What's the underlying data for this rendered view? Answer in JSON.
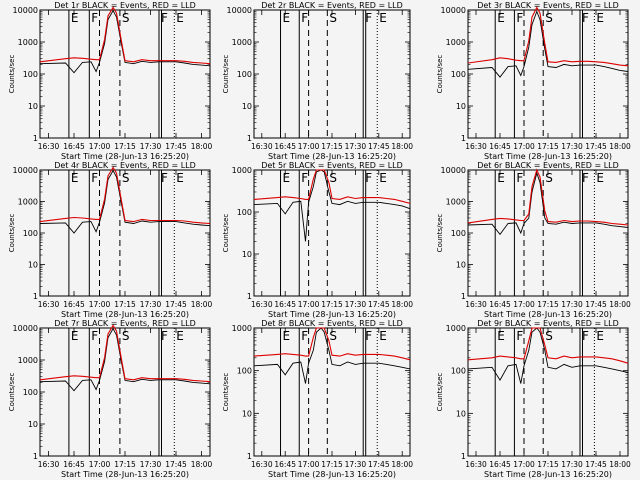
{
  "colors": {
    "events": "#000000",
    "lld": "#dd0000",
    "background": "#f4f4f4"
  },
  "chart_data": [
    {
      "title": "Det 1r BLACK = Events, RED = LLD",
      "type": "line",
      "xlabel": "Start Time (28-Jun-13 16:25:20)",
      "ylabel": "Counts/sec",
      "yscale": "log",
      "ylim": [
        1,
        10000
      ],
      "x": [
        "16:25",
        "16:40",
        "16:45",
        "16:50",
        "16:55",
        "16:58",
        "17:00",
        "17:03",
        "17:05",
        "17:08",
        "17:10",
        "17:13",
        "17:15",
        "17:20",
        "17:25",
        "17:30",
        "17:35",
        "17:40",
        "17:45",
        "17:50",
        "17:55",
        "18:00",
        "18:05"
      ],
      "series": [
        {
          "name": "BLACK = Events",
          "values": [
            210,
            220,
            110,
            230,
            240,
            120,
            230,
            900,
            5000,
            9500,
            6000,
            800,
            230,
            210,
            250,
            230,
            240,
            240,
            240,
            220,
            200,
            190,
            180
          ]
        },
        {
          "name": "RED = LLD",
          "values": [
            240,
            300,
            320,
            310,
            290,
            280,
            280,
            1200,
            6500,
            12000,
            8000,
            1000,
            260,
            240,
            280,
            260,
            260,
            260,
            260,
            250,
            230,
            220,
            210
          ]
        }
      ]
    },
    {
      "title": "Det 2r BLACK = Events, RED = LLD",
      "type": "line",
      "xlabel": "Start Time (28-Jun-13 16:25:20)",
      "ylabel": "Counts/sec",
      "yscale": "log",
      "ylim": [
        1,
        10000
      ],
      "x": [],
      "series": []
    },
    {
      "title": "Det 3r BLACK = Events, RED = LLD",
      "type": "line",
      "xlabel": "Start Time (28-Jun-13 16:25:20)",
      "ylabel": "Counts/sec",
      "yscale": "log",
      "ylim": [
        1,
        10000
      ],
      "x": [
        "16:25",
        "16:40",
        "16:45",
        "16:50",
        "16:55",
        "16:58",
        "17:00",
        "17:03",
        "17:05",
        "17:08",
        "17:10",
        "17:13",
        "17:15",
        "17:20",
        "17:25",
        "17:30",
        "17:35",
        "17:40",
        "17:45",
        "17:50",
        "17:55",
        "18:00",
        "18:05"
      ],
      "series": [
        {
          "name": "BLACK = Events",
          "values": [
            140,
            160,
            80,
            170,
            180,
            90,
            170,
            700,
            3500,
            9000,
            5000,
            600,
            170,
            160,
            200,
            180,
            190,
            190,
            190,
            170,
            150,
            130,
            120
          ]
        },
        {
          "name": "RED = LLD",
          "values": [
            220,
            280,
            320,
            300,
            270,
            260,
            260,
            1100,
            6000,
            12000,
            8000,
            900,
            240,
            230,
            260,
            240,
            250,
            250,
            240,
            230,
            210,
            190,
            180
          ]
        }
      ]
    },
    {
      "title": "Det 4r BLACK = Events, RED = LLD",
      "type": "line",
      "xlabel": "Start Time (28-Jun-13 16:25:20)",
      "ylabel": "Counts/sec",
      "yscale": "log",
      "ylim": [
        1,
        10000
      ],
      "x": [
        "16:25",
        "16:40",
        "16:45",
        "16:50",
        "16:55",
        "16:58",
        "17:00",
        "17:03",
        "17:05",
        "17:08",
        "17:10",
        "17:13",
        "17:15",
        "17:20",
        "17:25",
        "17:30",
        "17:35",
        "17:40",
        "17:45",
        "17:50",
        "17:55",
        "18:00",
        "18:05"
      ],
      "series": [
        {
          "name": "BLACK = Events",
          "values": [
            200,
            210,
            100,
            220,
            230,
            110,
            220,
            900,
            5000,
            9500,
            6000,
            800,
            220,
            200,
            240,
            220,
            230,
            230,
            230,
            210,
            190,
            180,
            170
          ]
        },
        {
          "name": "RED = LLD",
          "values": [
            230,
            290,
            310,
            300,
            280,
            270,
            270,
            1200,
            6500,
            12000,
            8000,
            1000,
            250,
            230,
            270,
            250,
            250,
            250,
            250,
            240,
            220,
            210,
            200
          ]
        }
      ]
    },
    {
      "title": "Det 5r BLACK = Events, RED = LLD",
      "type": "line",
      "xlabel": "Start Time (28-Jun-13 16:25:20)",
      "ylabel": "Counts/sec",
      "yscale": "log",
      "ylim": [
        1,
        1000
      ],
      "x": [
        "16:25",
        "16:40",
        "16:45",
        "16:50",
        "16:55",
        "16:58",
        "17:00",
        "17:03",
        "17:05",
        "17:08",
        "17:10",
        "17:13",
        "17:15",
        "17:20",
        "17:25",
        "17:30",
        "17:35",
        "17:40",
        "17:45",
        "17:50",
        "17:55",
        "18:00",
        "18:05"
      ],
      "series": [
        {
          "name": "BLACK = Events",
          "values": [
            150,
            160,
            90,
            170,
            180,
            20,
            170,
            400,
            900,
            1000,
            900,
            300,
            160,
            150,
            180,
            160,
            170,
            170,
            170,
            160,
            150,
            140,
            120
          ]
        },
        {
          "name": "RED = LLD",
          "values": [
            200,
            220,
            230,
            220,
            210,
            200,
            200,
            600,
            1000,
            1000,
            1000,
            500,
            210,
            200,
            230,
            210,
            220,
            220,
            220,
            210,
            200,
            180,
            160
          ]
        }
      ]
    },
    {
      "title": "Det 6r BLACK = Events, RED = LLD",
      "type": "line",
      "xlabel": "Start Time (28-Jun-13 16:25:20)",
      "ylabel": "Counts/sec",
      "yscale": "log",
      "ylim": [
        1,
        10000
      ],
      "x": [
        "16:25",
        "16:40",
        "16:45",
        "16:50",
        "16:55",
        "16:58",
        "17:00",
        "17:03",
        "17:05",
        "17:08",
        "17:10",
        "17:13",
        "17:15",
        "17:20",
        "17:25",
        "17:30",
        "17:35",
        "17:40",
        "17:45",
        "17:50",
        "17:55",
        "18:00",
        "18:05"
      ],
      "series": [
        {
          "name": "BLACK = Events",
          "values": [
            180,
            190,
            90,
            200,
            210,
            100,
            200,
            300,
            2000,
            8000,
            4000,
            300,
            200,
            190,
            220,
            200,
            210,
            210,
            210,
            190,
            170,
            160,
            150
          ]
        },
        {
          "name": "RED = LLD",
          "values": [
            210,
            270,
            290,
            280,
            260,
            250,
            250,
            400,
            3000,
            10000,
            6000,
            500,
            230,
            220,
            250,
            230,
            240,
            240,
            230,
            220,
            200,
            190,
            180
          ]
        }
      ]
    },
    {
      "title": "Det 7r BLACK = Events, RED = LLD",
      "type": "line",
      "xlabel": "Start Time (28-Jun-13 16:25:20)",
      "ylabel": "Counts/sec",
      "yscale": "log",
      "ylim": [
        1,
        10000
      ],
      "x": [
        "16:25",
        "16:40",
        "16:45",
        "16:50",
        "16:55",
        "16:58",
        "17:00",
        "17:03",
        "17:05",
        "17:08",
        "17:10",
        "17:13",
        "17:15",
        "17:20",
        "17:25",
        "17:30",
        "17:35",
        "17:40",
        "17:45",
        "17:50",
        "17:55",
        "18:00",
        "18:05"
      ],
      "series": [
        {
          "name": "BLACK = Events",
          "values": [
            210,
            220,
            110,
            230,
            240,
            120,
            230,
            900,
            5000,
            9500,
            6000,
            800,
            230,
            210,
            250,
            230,
            240,
            240,
            240,
            220,
            200,
            190,
            180
          ]
        },
        {
          "name": "RED = LLD",
          "values": [
            240,
            300,
            320,
            310,
            290,
            280,
            280,
            1200,
            6500,
            12000,
            8000,
            1000,
            260,
            240,
            280,
            260,
            260,
            260,
            260,
            250,
            230,
            220,
            210
          ]
        }
      ]
    },
    {
      "title": "Det 8r BLACK = Events, RED = LLD",
      "type": "line",
      "xlabel": "Start Time (28-Jun-13 16:25:20)",
      "ylabel": "Counts/sec",
      "yscale": "log",
      "ylim": [
        1,
        1000
      ],
      "x": [
        "16:25",
        "16:40",
        "16:45",
        "16:50",
        "16:55",
        "16:58",
        "17:00",
        "17:03",
        "17:05",
        "17:08",
        "17:10",
        "17:13",
        "17:15",
        "17:20",
        "17:25",
        "17:30",
        "17:35",
        "17:40",
        "17:45",
        "17:50",
        "17:55",
        "18:00",
        "18:05"
      ],
      "series": [
        {
          "name": "BLACK = Events",
          "values": [
            130,
            140,
            80,
            150,
            160,
            50,
            150,
            300,
            800,
            1000,
            800,
            300,
            140,
            130,
            160,
            140,
            150,
            150,
            150,
            140,
            130,
            120,
            110
          ]
        },
        {
          "name": "RED = LLD",
          "values": [
            220,
            240,
            250,
            240,
            230,
            220,
            220,
            600,
            1000,
            1000,
            1000,
            500,
            230,
            220,
            250,
            230,
            240,
            240,
            240,
            230,
            220,
            200,
            180
          ]
        }
      ]
    },
    {
      "title": "Det 9r BLACK = Events, RED = LLD",
      "type": "line",
      "xlabel": "Start Time (28-Jun-13 16:25:20)",
      "ylabel": "Counts/sec",
      "yscale": "log",
      "ylim": [
        1,
        1000
      ],
      "x": [
        "16:25",
        "16:40",
        "16:45",
        "16:50",
        "16:55",
        "16:58",
        "17:00",
        "17:03",
        "17:05",
        "17:08",
        "17:10",
        "17:13",
        "17:15",
        "17:20",
        "17:25",
        "17:30",
        "17:35",
        "17:40",
        "17:45",
        "17:50",
        "17:55",
        "18:00",
        "18:05"
      ],
      "series": [
        {
          "name": "BLACK = Events",
          "values": [
            110,
            120,
            60,
            130,
            140,
            50,
            130,
            300,
            800,
            1000,
            800,
            300,
            120,
            110,
            140,
            120,
            130,
            130,
            130,
            120,
            110,
            100,
            90
          ]
        },
        {
          "name": "RED = LLD",
          "values": [
            180,
            200,
            220,
            210,
            200,
            190,
            190,
            500,
            1000,
            1000,
            1000,
            400,
            200,
            190,
            220,
            200,
            210,
            210,
            210,
            200,
            190,
            170,
            150
          ]
        }
      ]
    }
  ],
  "xticks": [
    "16:30",
    "16:45",
    "17:00",
    "17:15",
    "17:30",
    "17:45",
    "18:00"
  ],
  "flags": {
    "e": "E",
    "f": "F",
    "s": "S"
  }
}
